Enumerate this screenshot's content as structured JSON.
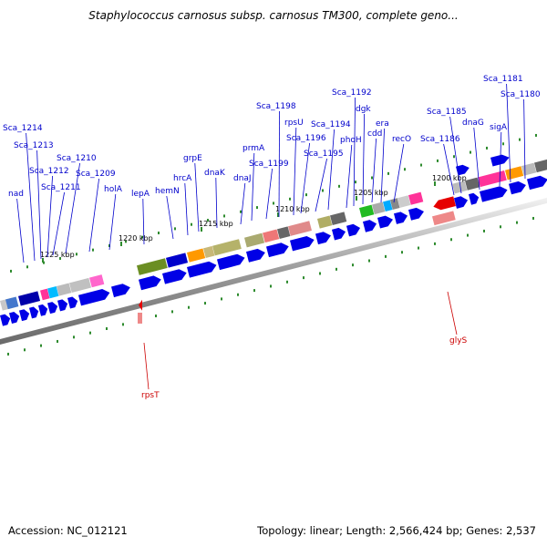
{
  "title": "Staphylococcus carnosus subsp. carnosus TM300, complete geno...",
  "footer": {
    "accession": "Accession: NC_012121",
    "topology": "Topology: linear; Length: 2,566,424 bp; Genes: 2,537"
  },
  "scale_labels": [
    "1225 kbp",
    "1220 kbp",
    "1215 kbp",
    "1210 kbp",
    "1205 kbp",
    "1200 kbp"
  ],
  "gene_labels": [
    "nad",
    "Sca_1214",
    "Sca_1213",
    "Sca_1212",
    "Sca_1211",
    "Sca_1210",
    "Sca_1209",
    "holA",
    "lepA",
    "hemN",
    "hrcA",
    "grpE",
    "dnaK",
    "dnaJ",
    "prmA",
    "Sca_1199",
    "Sca_1198",
    "rpsU",
    "Sca_1196",
    "Sca_1195",
    "Sca_1194",
    "phoH",
    "Sca_1192",
    "dgk",
    "cdd",
    "era",
    "recO",
    "Sca_1186",
    "Sca_1185",
    "dnaG",
    "sigA",
    "Sca_1181",
    "Sca_1180"
  ],
  "rna_labels": [
    "rpsT",
    "glyS"
  ],
  "colors": {
    "cds": "#0000e6",
    "rna": "#e60000",
    "tick": "#2e8b2e",
    "label": "#0000cc",
    "rna_label": "#cc0000",
    "backbone": "#888888"
  }
}
